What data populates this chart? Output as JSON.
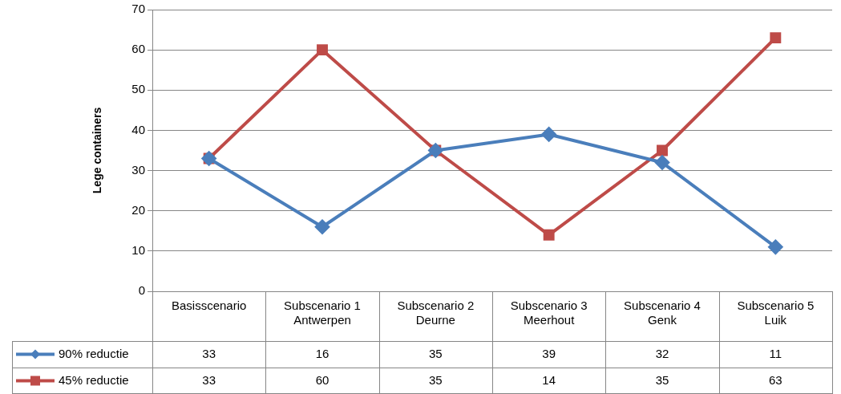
{
  "chart_data": {
    "type": "line",
    "ylabel": "Lege containers",
    "categories": [
      "Basisscenario",
      "Subscenario 1\nAntwerpen",
      "Subscenario 2\nDeurne",
      "Subscenario 3\nMeerhout",
      "Subscenario 4\nGenk",
      "Subscenario 5\nLuik"
    ],
    "series": [
      {
        "name": "90% reductie",
        "color": "#4a7ebb",
        "marker": "diamond",
        "values": [
          33,
          16,
          35,
          39,
          32,
          11
        ]
      },
      {
        "name": "45% reductie",
        "color": "#be4b48",
        "marker": "square",
        "values": [
          33,
          60,
          35,
          14,
          35,
          63
        ]
      }
    ],
    "ylim": [
      0,
      70
    ],
    "yticks": [
      0,
      10,
      20,
      30,
      40,
      50,
      60,
      70
    ],
    "grid": "y",
    "legend": "bottom left",
    "data_labels": true
  }
}
